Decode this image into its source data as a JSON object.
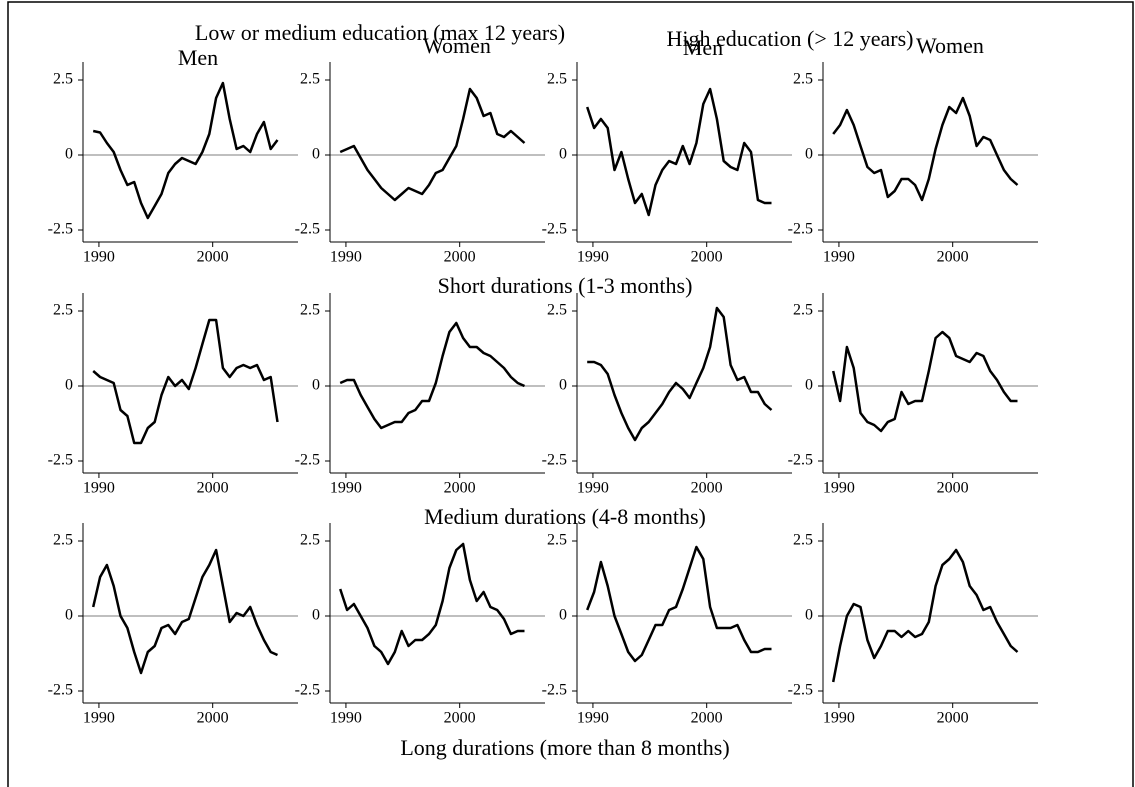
{
  "headings": {
    "group_low": "Low or medium education (max 12 years)",
    "group_high": "High education (> 12 years)",
    "col1": "Men",
    "col2": "Women",
    "col3": "Men",
    "col4": "Women",
    "row_short": "Short durations (1-3 months)",
    "row_medium": "Medium durations (4-8 months)",
    "row_long": "Long durations (more than 8 months)"
  },
  "chart_data": [
    {
      "type": "line",
      "x": [
        1989.5,
        1990.1,
        1990.7,
        1991.3,
        1991.9,
        1992.5,
        1993.1,
        1993.7,
        1994.3,
        1994.9,
        1995.5,
        1996.1,
        1996.7,
        1997.3,
        1997.9,
        1998.5,
        1999.1,
        1999.7,
        2000.3,
        2000.9,
        2001.5,
        2002.1,
        2002.7,
        2003.3,
        2003.9,
        2004.5,
        2005.1,
        2005.7
      ],
      "values": [
        0.8,
        0.75,
        0.4,
        0.1,
        -0.5,
        -1.0,
        -0.9,
        -1.6,
        -2.1,
        -1.7,
        -1.3,
        -0.6,
        -0.3,
        -0.1,
        -0.2,
        -0.3,
        0.1,
        0.7,
        1.9,
        2.4,
        1.2,
        0.2,
        0.3,
        0.1,
        0.7,
        1.1,
        0.2,
        0.5
      ],
      "color": "#000000",
      "xlim": [
        1988.6,
        2007.5
      ],
      "ylim": [
        -2.9,
        3.1
      ],
      "xticks": [
        1990,
        2000
      ],
      "yticks": [
        -2.5,
        0,
        2.5
      ],
      "hline": 0
    },
    {
      "type": "line",
      "x": [
        1989.5,
        1990.1,
        1990.7,
        1991.3,
        1991.9,
        1992.5,
        1993.1,
        1993.7,
        1994.3,
        1994.9,
        1995.5,
        1996.1,
        1996.7,
        1997.3,
        1997.9,
        1998.5,
        1999.1,
        1999.7,
        2000.3,
        2000.9,
        2001.5,
        2002.1,
        2002.7,
        2003.3,
        2003.9,
        2004.5,
        2005.1,
        2005.7
      ],
      "values": [
        0.1,
        0.2,
        0.3,
        -0.1,
        -0.5,
        -0.8,
        -1.1,
        -1.3,
        -1.5,
        -1.3,
        -1.1,
        -1.2,
        -1.3,
        -1.0,
        -0.6,
        -0.5,
        -0.1,
        0.3,
        1.2,
        2.2,
        1.9,
        1.3,
        1.4,
        0.7,
        0.6,
        0.8,
        0.6,
        0.4
      ],
      "color": "#000000",
      "xlim": [
        1988.6,
        2007.5
      ],
      "ylim": [
        -2.9,
        3.1
      ],
      "xticks": [
        1990,
        2000
      ],
      "yticks": [
        -2.5,
        0,
        2.5
      ],
      "hline": 0
    },
    {
      "type": "line",
      "x": [
        1989.5,
        1990.1,
        1990.7,
        1991.3,
        1991.9,
        1992.5,
        1993.1,
        1993.7,
        1994.3,
        1994.9,
        1995.5,
        1996.1,
        1996.7,
        1997.3,
        1997.9,
        1998.5,
        1999.1,
        1999.7,
        2000.3,
        2000.9,
        2001.5,
        2002.1,
        2002.7,
        2003.3,
        2003.9,
        2004.5,
        2005.1,
        2005.7
      ],
      "values": [
        1.6,
        0.9,
        1.2,
        0.9,
        -0.5,
        0.1,
        -0.8,
        -1.6,
        -1.3,
        -2.0,
        -1.0,
        -0.5,
        -0.2,
        -0.3,
        0.3,
        -0.3,
        0.4,
        1.7,
        2.2,
        1.2,
        -0.2,
        -0.4,
        -0.5,
        0.4,
        0.1,
        -1.5,
        -1.6,
        -1.6
      ],
      "color": "#000000",
      "xlim": [
        1988.6,
        2007.5
      ],
      "ylim": [
        -2.9,
        3.1
      ],
      "xticks": [
        1990,
        2000
      ],
      "yticks": [
        -2.5,
        0,
        2.5
      ],
      "hline": 0
    },
    {
      "type": "line",
      "x": [
        1989.5,
        1990.1,
        1990.7,
        1991.3,
        1991.9,
        1992.5,
        1993.1,
        1993.7,
        1994.3,
        1994.9,
        1995.5,
        1996.1,
        1996.7,
        1997.3,
        1997.9,
        1998.5,
        1999.1,
        1999.7,
        2000.3,
        2000.9,
        2001.5,
        2002.1,
        2002.7,
        2003.3,
        2003.9,
        2004.5,
        2005.1,
        2005.7
      ],
      "values": [
        0.7,
        1.0,
        1.5,
        1.0,
        0.3,
        -0.4,
        -0.6,
        -0.5,
        -1.4,
        -1.2,
        -0.8,
        -0.8,
        -1.0,
        -1.5,
        -0.8,
        0.2,
        1.0,
        1.6,
        1.4,
        1.9,
        1.3,
        0.3,
        0.6,
        0.5,
        0,
        -0.5,
        -0.8,
        -1.0
      ],
      "color": "#000000",
      "xlim": [
        1988.6,
        2007.5
      ],
      "ylim": [
        -2.9,
        3.1
      ],
      "xticks": [
        1990,
        2000
      ],
      "yticks": [
        -2.5,
        0,
        2.5
      ],
      "hline": 0
    },
    {
      "type": "line",
      "x": [
        1989.5,
        1990.1,
        1990.7,
        1991.3,
        1991.9,
        1992.5,
        1993.1,
        1993.7,
        1994.3,
        1994.9,
        1995.5,
        1996.1,
        1996.7,
        1997.3,
        1997.9,
        1998.5,
        1999.1,
        1999.7,
        2000.3,
        2000.9,
        2001.5,
        2002.1,
        2002.7,
        2003.3,
        2003.9,
        2004.5,
        2005.1,
        2005.7
      ],
      "values": [
        0.5,
        0.3,
        0.2,
        0.1,
        -0.8,
        -1.0,
        -1.9,
        -1.9,
        -1.4,
        -1.2,
        -0.3,
        0.3,
        0,
        0.2,
        -0.1,
        0.6,
        1.4,
        2.2,
        2.2,
        0.6,
        0.3,
        0.6,
        0.7,
        0.6,
        0.7,
        0.2,
        0.3,
        -1.2
      ],
      "color": "#000000",
      "xlim": [
        1988.6,
        2007.5
      ],
      "ylim": [
        -2.9,
        3.1
      ],
      "xticks": [
        1990,
        2000
      ],
      "yticks": [
        -2.5,
        0,
        2.5
      ],
      "hline": 0
    },
    {
      "type": "line",
      "x": [
        1989.5,
        1990.1,
        1990.7,
        1991.3,
        1991.9,
        1992.5,
        1993.1,
        1993.7,
        1994.3,
        1994.9,
        1995.5,
        1996.1,
        1996.7,
        1997.3,
        1997.9,
        1998.5,
        1999.1,
        1999.7,
        2000.3,
        2000.9,
        2001.5,
        2002.1,
        2002.7,
        2003.3,
        2003.9,
        2004.5,
        2005.1,
        2005.7
      ],
      "values": [
        0.1,
        0.2,
        0.2,
        -0.3,
        -0.7,
        -1.1,
        -1.4,
        -1.3,
        -1.2,
        -1.2,
        -0.9,
        -0.8,
        -0.5,
        -0.5,
        0.1,
        1.0,
        1.8,
        2.1,
        1.6,
        1.3,
        1.3,
        1.1,
        1.0,
        0.8,
        0.6,
        0.3,
        0.1,
        0
      ],
      "color": "#000000",
      "xlim": [
        1988.6,
        2007.5
      ],
      "ylim": [
        -2.9,
        3.1
      ],
      "xticks": [
        1990,
        2000
      ],
      "yticks": [
        -2.5,
        0,
        2.5
      ],
      "hline": 0
    },
    {
      "type": "line",
      "x": [
        1989.5,
        1990.1,
        1990.7,
        1991.3,
        1991.9,
        1992.5,
        1993.1,
        1993.7,
        1994.3,
        1994.9,
        1995.5,
        1996.1,
        1996.7,
        1997.3,
        1997.9,
        1998.5,
        1999.1,
        1999.7,
        2000.3,
        2000.9,
        2001.5,
        2002.1,
        2002.7,
        2003.3,
        2003.9,
        2004.5,
        2005.1,
        2005.7
      ],
      "values": [
        0.8,
        0.8,
        0.7,
        0.4,
        -0.3,
        -0.9,
        -1.4,
        -1.8,
        -1.4,
        -1.2,
        -0.9,
        -0.6,
        -0.2,
        0.1,
        -0.1,
        -0.4,
        0.1,
        0.6,
        1.3,
        2.6,
        2.3,
        0.7,
        0.2,
        0.3,
        -0.2,
        -0.2,
        -0.6,
        -0.8
      ],
      "color": "#000000",
      "xlim": [
        1988.6,
        2007.5
      ],
      "ylim": [
        -2.9,
        3.1
      ],
      "xticks": [
        1990,
        2000
      ],
      "yticks": [
        -2.5,
        0,
        2.5
      ],
      "hline": 0
    },
    {
      "type": "line",
      "x": [
        1989.5,
        1990.1,
        1990.7,
        1991.3,
        1991.9,
        1992.5,
        1993.1,
        1993.7,
        1994.3,
        1994.9,
        1995.5,
        1996.1,
        1996.7,
        1997.3,
        1997.9,
        1998.5,
        1999.1,
        1999.7,
        2000.3,
        2000.9,
        2001.5,
        2002.1,
        2002.7,
        2003.3,
        2003.9,
        2004.5,
        2005.1,
        2005.7
      ],
      "values": [
        0.5,
        -0.5,
        1.3,
        0.6,
        -0.9,
        -1.2,
        -1.3,
        -1.5,
        -1.2,
        -1.1,
        -0.2,
        -0.6,
        -0.5,
        -0.5,
        0.5,
        1.6,
        1.8,
        1.6,
        1.0,
        0.9,
        0.8,
        1.1,
        1.0,
        0.5,
        0.2,
        -0.2,
        -0.5,
        -0.5
      ],
      "color": "#000000",
      "xlim": [
        1988.6,
        2007.5
      ],
      "ylim": [
        -2.9,
        3.1
      ],
      "xticks": [
        1990,
        2000
      ],
      "yticks": [
        -2.5,
        0,
        2.5
      ],
      "hline": 0
    },
    {
      "type": "line",
      "x": [
        1989.5,
        1990.1,
        1990.7,
        1991.3,
        1991.9,
        1992.5,
        1993.1,
        1993.7,
        1994.3,
        1994.9,
        1995.5,
        1996.1,
        1996.7,
        1997.3,
        1997.9,
        1998.5,
        1999.1,
        1999.7,
        2000.3,
        2000.9,
        2001.5,
        2002.1,
        2002.7,
        2003.3,
        2003.9,
        2004.5,
        2005.1,
        2005.7
      ],
      "values": [
        0.3,
        1.3,
        1.7,
        1.0,
        0,
        -0.4,
        -1.2,
        -1.9,
        -1.2,
        -1.0,
        -0.4,
        -0.3,
        -0.6,
        -0.2,
        -0.1,
        0.6,
        1.3,
        1.7,
        2.2,
        1.0,
        -0.2,
        0.1,
        0,
        0.3,
        -0.3,
        -0.8,
        -1.2,
        -1.3
      ],
      "color": "#000000",
      "xlim": [
        1988.6,
        2007.5
      ],
      "ylim": [
        -2.9,
        3.1
      ],
      "xticks": [
        1990,
        2000
      ],
      "yticks": [
        -2.5,
        0,
        2.5
      ],
      "hline": 0
    },
    {
      "type": "line",
      "x": [
        1989.5,
        1990.1,
        1990.7,
        1991.3,
        1991.9,
        1992.5,
        1993.1,
        1993.7,
        1994.3,
        1994.9,
        1995.5,
        1996.1,
        1996.7,
        1997.3,
        1997.9,
        1998.5,
        1999.1,
        1999.7,
        2000.3,
        2000.9,
        2001.5,
        2002.1,
        2002.7,
        2003.3,
        2003.9,
        2004.5,
        2005.1,
        2005.7
      ],
      "values": [
        0.9,
        0.2,
        0.4,
        0,
        -0.4,
        -1.0,
        -1.2,
        -1.6,
        -1.2,
        -0.5,
        -1.0,
        -0.8,
        -0.8,
        -0.6,
        -0.3,
        0.5,
        1.6,
        2.2,
        2.4,
        1.2,
        0.5,
        0.8,
        0.3,
        0.2,
        -0.1,
        -0.6,
        -0.5,
        -0.5
      ],
      "color": "#000000",
      "xlim": [
        1988.6,
        2007.5
      ],
      "ylim": [
        -2.9,
        3.1
      ],
      "xticks": [
        1990,
        2000
      ],
      "yticks": [
        -2.5,
        0,
        2.5
      ],
      "hline": 0
    },
    {
      "type": "line",
      "x": [
        1989.5,
        1990.1,
        1990.7,
        1991.3,
        1991.9,
        1992.5,
        1993.1,
        1993.7,
        1994.3,
        1994.9,
        1995.5,
        1996.1,
        1996.7,
        1997.3,
        1997.9,
        1998.5,
        1999.1,
        1999.7,
        2000.3,
        2000.9,
        2001.5,
        2002.1,
        2002.7,
        2003.3,
        2003.9,
        2004.5,
        2005.1,
        2005.7
      ],
      "values": [
        0.2,
        0.8,
        1.8,
        1.0,
        0,
        -0.6,
        -1.2,
        -1.5,
        -1.3,
        -0.8,
        -0.3,
        -0.3,
        0.2,
        0.3,
        0.9,
        1.6,
        2.3,
        1.9,
        0.3,
        -0.4,
        -0.4,
        -0.4,
        -0.3,
        -0.8,
        -1.2,
        -1.2,
        -1.1,
        -1.1
      ],
      "color": "#000000",
      "xlim": [
        1988.6,
        2007.5
      ],
      "ylim": [
        -2.9,
        3.1
      ],
      "xticks": [
        1990,
        2000
      ],
      "yticks": [
        -2.5,
        0,
        2.5
      ],
      "hline": 0
    },
    {
      "type": "line",
      "x": [
        1989.5,
        1990.1,
        1990.7,
        1991.3,
        1991.9,
        1992.5,
        1993.1,
        1993.7,
        1994.3,
        1994.9,
        1995.5,
        1996.1,
        1996.7,
        1997.3,
        1997.9,
        1998.5,
        1999.1,
        1999.7,
        2000.3,
        2000.9,
        2001.5,
        2002.1,
        2002.7,
        2003.3,
        2003.9,
        2004.5,
        2005.1,
        2005.7
      ],
      "values": [
        -2.2,
        -1.0,
        0,
        0.4,
        0.3,
        -0.8,
        -1.4,
        -1.0,
        -0.5,
        -0.5,
        -0.7,
        -0.5,
        -0.7,
        -0.6,
        -0.2,
        1.0,
        1.7,
        1.9,
        2.2,
        1.8,
        1.0,
        0.7,
        0.2,
        0.3,
        -0.2,
        -0.6,
        -1.0,
        -1.2
      ],
      "color": "#000000",
      "xlim": [
        1988.6,
        2007.5
      ],
      "ylim": [
        -2.9,
        3.1
      ],
      "xticks": [
        1990,
        2000
      ],
      "yticks": [
        -2.5,
        0,
        2.5
      ],
      "hline": 0
    }
  ]
}
